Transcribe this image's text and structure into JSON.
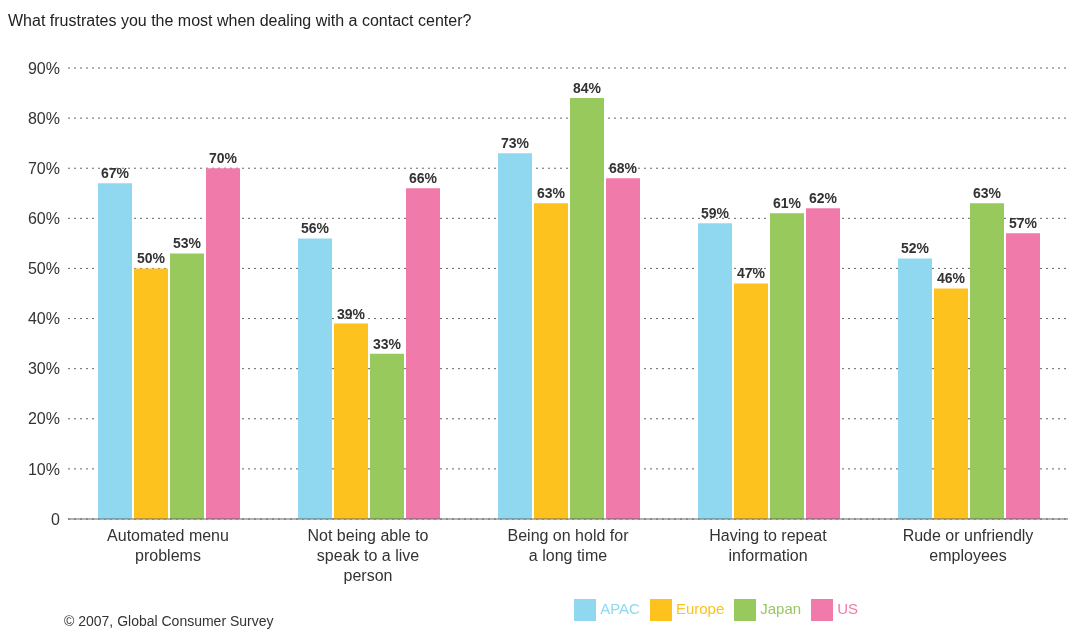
{
  "chart_data": {
    "type": "bar",
    "title": "What frustrates you the most when dealing with a contact center?",
    "categories": [
      "Automated menu problems",
      "Not being able to speak to a live person",
      "Being on hold for a long time",
      "Having to repeat information",
      "Rude or unfriendly employees"
    ],
    "series": [
      {
        "name": "APAC",
        "color": "#8fd8f0",
        "values": [
          67,
          56,
          73,
          59,
          52
        ],
        "value_labels": [
          "67%",
          "56%",
          "73%",
          "59%",
          "52%"
        ]
      },
      {
        "name": "Europe",
        "color": "#fdc21e",
        "values": [
          50,
          39,
          63,
          47,
          46
        ],
        "value_labels": [
          "50%",
          "39%",
          "63%",
          "47%",
          "46%"
        ]
      },
      {
        "name": "Japan",
        "color": "#97c95c",
        "values": [
          53,
          33,
          84,
          61,
          63
        ],
        "value_labels": [
          "53%",
          "33%",
          "84%",
          "61%",
          "63%"
        ]
      },
      {
        "name": "US",
        "color": "#f07aaa",
        "values": [
          70,
          66,
          68,
          62,
          57
        ],
        "value_labels": [
          "70%",
          "66%",
          "68%",
          "62%",
          "57%"
        ]
      }
    ],
    "ylim": [
      0,
      90
    ],
    "yticks": [
      {
        "value": 0,
        "label": "0"
      },
      {
        "value": 10,
        "label": "10%"
      },
      {
        "value": 20,
        "label": "20%"
      },
      {
        "value": 30,
        "label": "30%"
      },
      {
        "value": 40,
        "label": "40%"
      },
      {
        "value": 50,
        "label": "50%"
      },
      {
        "value": 60,
        "label": "60%"
      },
      {
        "value": 70,
        "label": "70%"
      },
      {
        "value": 80,
        "label": "80%"
      },
      {
        "value": 90,
        "label": "90%"
      }
    ],
    "grid": "y",
    "legend": "bottom right",
    "annotations": [
      "© 2007, Global Consumer Survey"
    ]
  }
}
